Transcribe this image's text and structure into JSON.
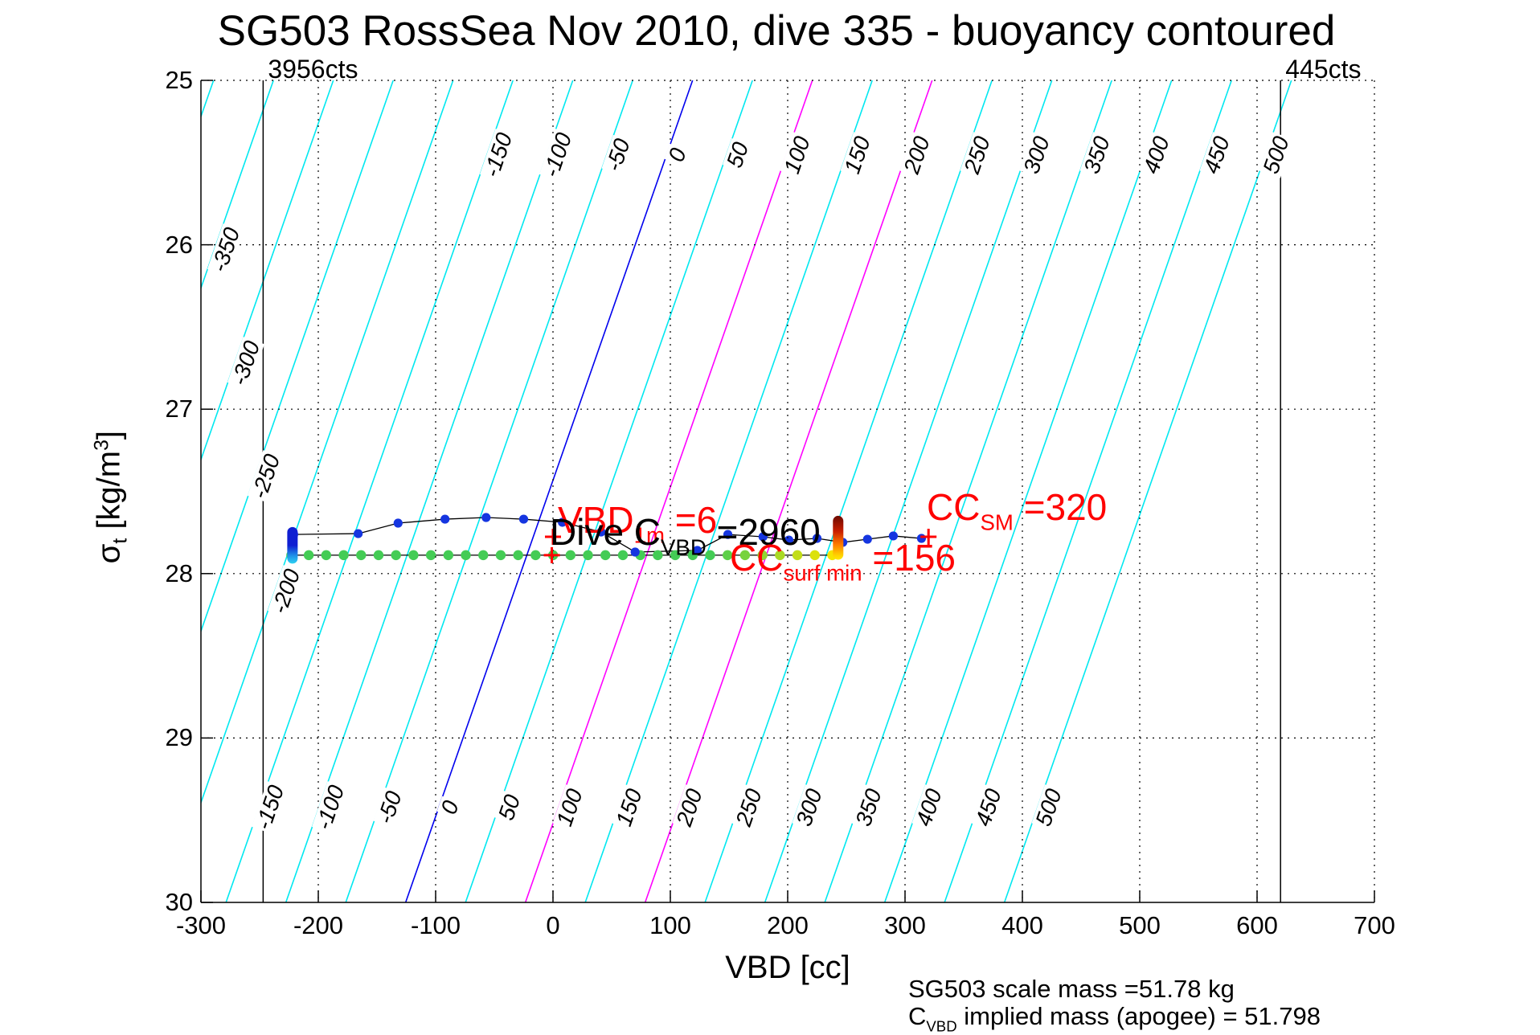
{
  "title": "SG503 RossSea Nov 2010, dive 335 - buoyancy contoured",
  "axes": {
    "xlabel": "VBD [cc]",
    "ylabel": {
      "sigma": "σ",
      "sub": "t",
      "mid": " [kg/m",
      "sup": "3",
      "end": "]"
    },
    "x_ticks": [
      -300,
      -200,
      -100,
      0,
      100,
      200,
      300,
      400,
      500,
      600,
      700
    ],
    "y_ticks": [
      25,
      26,
      27,
      28,
      29,
      30
    ]
  },
  "vbd_limit_lines": [
    {
      "label": "3956cts",
      "vbd": -247
    },
    {
      "label": "445cts",
      "vbd": 620
    }
  ],
  "annotations": {
    "vbd_1m": {
      "main": "VBD",
      "sub": "1m",
      "rest": " =6",
      "color": "#FF0000"
    },
    "dive_cvbd": {
      "main": "Dive C",
      "sub": "VBD",
      "rest": " =2960",
      "color": "#000000"
    },
    "cc_surf": {
      "main": "CC",
      "sub": "surf min",
      "rest": " =156",
      "color": "#FF0000"
    },
    "cc_sm": {
      "main": "CC",
      "sub": "SM",
      "rest": " =320",
      "color": "#FF0000"
    }
  },
  "footer": {
    "line1": "SG503 scale mass =51.78 kg",
    "line2_main": "C",
    "line2_sub": "VBD",
    "line2_rest": " implied mass (apogee) = 51.798"
  },
  "chart_data": {
    "type": "scatter",
    "title": "SG503 RossSea Nov 2010, dive 335 - buoyancy contoured",
    "xlabel": "VBD [cc]",
    "ylabel": "sigma_t [kg/m3]",
    "xlim": [
      -300,
      700
    ],
    "ylim": [
      25,
      30
    ],
    "y_inverted": true,
    "grid": "dotted",
    "contours": {
      "comment": "buoyancy contour lines, value in grams; diagonal lines",
      "value_min": -400,
      "value_max": 500,
      "step": 50,
      "vbd_offset_at_sigma25": 119,
      "vbd_offset_at_sigma30": -125,
      "labels_top": [
        -150,
        -100,
        -50,
        0,
        50,
        100,
        150,
        200,
        250,
        300,
        350,
        400,
        450,
        500
      ],
      "labels_bottom": [
        -150,
        -100,
        -50,
        0,
        50,
        100,
        150,
        200,
        250,
        300,
        350,
        400,
        450,
        500
      ],
      "labels_left": [
        -350,
        -300,
        -250,
        -200
      ],
      "left_label_sigmas": {
        "-350": 26.03,
        "-300": 26.72,
        "-250": 27.41,
        "-200": 28.11
      },
      "color_default": "#00E8F0",
      "color_zero": "#0000EE",
      "color_magenta_values": [
        100,
        200
      ],
      "color_magenta": "#FF00FF"
    },
    "vbd_limit_lines_vbd": [
      -247,
      620
    ],
    "series": [
      {
        "name": "dive-trace",
        "marker_color": "#1535E0",
        "line_color": "#000000",
        "points": [
          [
            -221,
            27.762
          ],
          [
            -166,
            27.757
          ],
          [
            -132,
            27.693
          ],
          [
            -92,
            27.669
          ],
          [
            -57,
            27.659
          ],
          [
            -25,
            27.669
          ],
          [
            8,
            27.688
          ],
          [
            41,
            27.747
          ],
          [
            70,
            27.869
          ],
          [
            123,
            27.859
          ],
          [
            149,
            27.762
          ],
          [
            179,
            27.776
          ],
          [
            201,
            27.796
          ],
          [
            225,
            27.786
          ],
          [
            247,
            27.81
          ],
          [
            268,
            27.791
          ],
          [
            290,
            27.771
          ],
          [
            314,
            27.786
          ]
        ]
      },
      {
        "name": "climb-trace",
        "marker_color": "#44CC55",
        "yellow_tail_color": "#F5E400",
        "line_color": "#000000",
        "sigma": 27.888,
        "vbd_start": -223,
        "vbd_end": 238,
        "count": 32,
        "yellow_tail_from_index": 24
      }
    ],
    "blobs": [
      {
        "name": "descent-start-blob",
        "vbd": -222,
        "sigma_top": 27.746,
        "sigma_bottom": 27.91,
        "stops": [
          [
            0,
            "#0f1ed2"
          ],
          [
            0.5,
            "#0f1ed2"
          ],
          [
            0.78,
            "#1f8fe8"
          ],
          [
            1,
            "#2ed3f2"
          ]
        ]
      },
      {
        "name": "apogee-pump-blob",
        "vbd": 243,
        "sigma_top": 27.678,
        "sigma_bottom": 27.886,
        "stops": [
          [
            0,
            "#6b0a00"
          ],
          [
            0.35,
            "#c81e00"
          ],
          [
            0.65,
            "#ff7a00"
          ],
          [
            0.9,
            "#ffd200"
          ],
          [
            1,
            "#ffe800"
          ]
        ]
      }
    ],
    "markers_plus": {
      "color": "#FF0000",
      "points": [
        [
          0,
          27.776
        ],
        [
          -1,
          27.888
        ],
        [
          320,
          27.776
        ]
      ]
    }
  }
}
